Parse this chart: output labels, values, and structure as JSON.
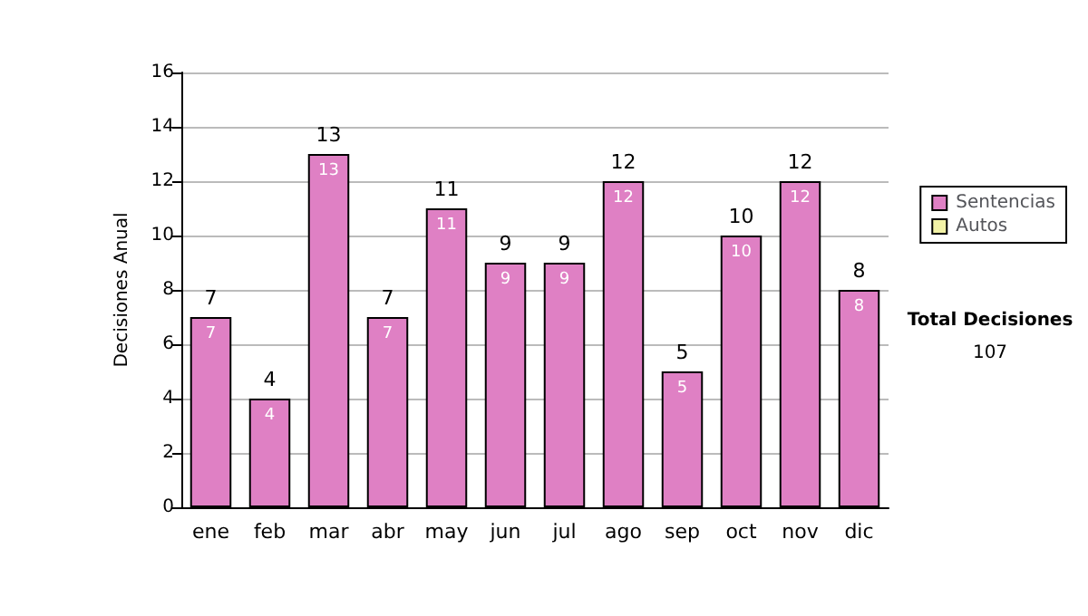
{
  "chart_data": {
    "type": "bar",
    "ylabel": "Decisiones Anual",
    "categories": [
      "ene",
      "feb",
      "mar",
      "abr",
      "may",
      "jun",
      "jul",
      "ago",
      "sep",
      "oct",
      "nov",
      "dic"
    ],
    "series": [
      {
        "name": "Sentencias",
        "color": "#df80c4",
        "values": [
          7,
          4,
          13,
          7,
          11,
          9,
          9,
          12,
          5,
          10,
          12,
          8
        ],
        "value_labels": [
          "7",
          "4",
          "13",
          "7",
          "11",
          "9",
          "9",
          "12",
          "5",
          "10",
          "12",
          "8"
        ]
      },
      {
        "name": "Autos",
        "color": "#f2f2a6",
        "values": [
          0,
          0,
          0,
          0,
          0,
          0,
          0,
          0,
          0,
          0,
          0,
          0
        ]
      }
    ],
    "stacked": true,
    "totals": [
      "7",
      "4",
      "13",
      "7",
      "11",
      "9",
      "9",
      "12",
      "5",
      "10",
      "12",
      "8"
    ],
    "ylim": [
      0,
      16
    ],
    "yticks": [
      0,
      2,
      4,
      6,
      8,
      10,
      12,
      14,
      16
    ],
    "grid": "y",
    "legend": "right",
    "annotations": [
      "Total Decisiones",
      "107"
    ]
  }
}
